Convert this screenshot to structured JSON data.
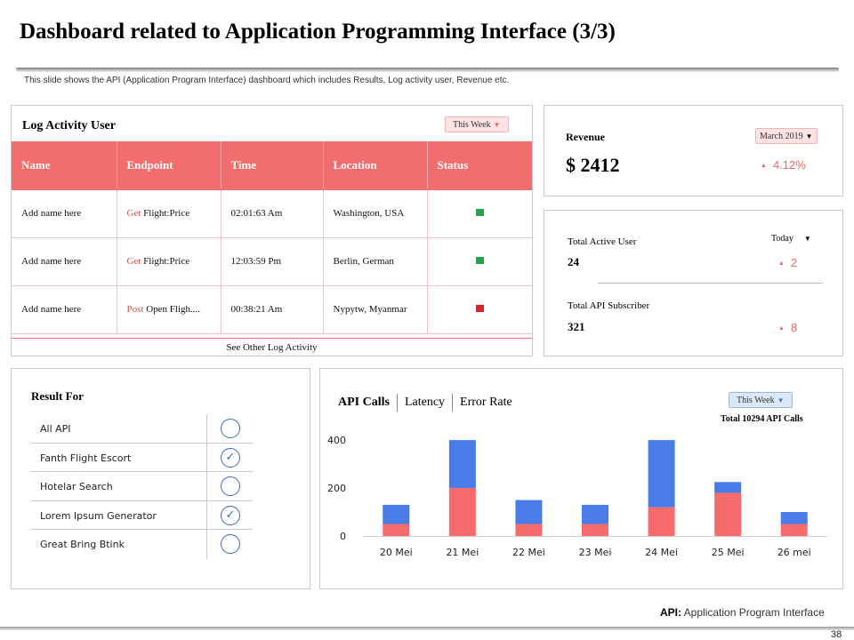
{
  "title": "Dashboard related to Application Programming Interface (3/3)",
  "subtitle": "This slide shows the API (Application Program Interface) dashboard which includes Results, Log activity user, Revenue etc.",
  "log_activity": {
    "title": "Log Activity User",
    "filter": "This Week",
    "columns": [
      "Name",
      "Endpoint",
      "Time",
      "Location",
      "Status"
    ],
    "rows": [
      {
        "name": "Add name here",
        "method": "Get",
        "endpoint": "Flight:Price",
        "time": "02:01:63 Am",
        "location": "Washington, USA",
        "status_color": "#1fa64a"
      },
      {
        "name": "Add name here",
        "method": "Get",
        "endpoint": "Flight:Price",
        "time": "12:03:59 Pm",
        "location": "Berlin, German",
        "status_color": "#1fa64a"
      },
      {
        "name": "Add name here",
        "method": "Post",
        "endpoint": "Open Fligh....",
        "time": "00:38:21 Am",
        "location": "Nypytw, Myanmar",
        "status_color": "#e0202a"
      }
    ],
    "footer": "See Other Log Activity"
  },
  "revenue": {
    "label": "Revenue",
    "filter": "March 2019",
    "value": "$ 2412",
    "change": "4.12%"
  },
  "users": {
    "filter": "Today",
    "active_label": "Total Active User",
    "active_value": "24",
    "active_change": "2",
    "subscriber_label": "Total API Subscriber",
    "subscriber_value": "321",
    "subscriber_change": "8"
  },
  "result": {
    "title": "Result For",
    "items": [
      {
        "label": "All API",
        "checked": false
      },
      {
        "label": "Fanth Flight Escort",
        "checked": true
      },
      {
        "label": "Hotelar Search",
        "checked": false
      },
      {
        "label": "Lorem  Ipsum Generator",
        "checked": true
      },
      {
        "label": "Great Bring Btink",
        "checked": false
      }
    ]
  },
  "api": {
    "tabs": [
      "API Calls",
      "Latency",
      "Error Rate"
    ],
    "filter": "This Week",
    "total": "Total 10294 API Calls"
  },
  "chart_data": {
    "type": "bar",
    "stacked": true,
    "categories": [
      "20 Mei",
      "21 Mei",
      "22 Mei",
      "23 Mei",
      "24 Mei",
      "25 Mei",
      "26 mei"
    ],
    "series": [
      {
        "color": "#f66b6b",
        "values": [
          50,
          200,
          50,
          50,
          120,
          180,
          50
        ]
      },
      {
        "color": "#4a7ce8",
        "values": [
          80,
          200,
          100,
          80,
          280,
          45,
          50
        ]
      }
    ],
    "yticks": [
      0,
      200,
      400
    ],
    "ylim": [
      0,
      430
    ],
    "grid": false
  },
  "footnote": {
    "term": "API:",
    "definition": "Application Program Interface"
  },
  "page_number": "38"
}
